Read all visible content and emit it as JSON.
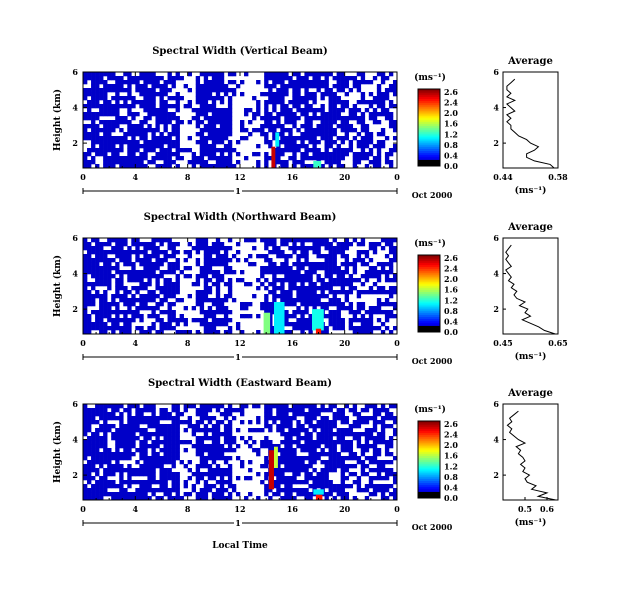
{
  "figure": {
    "date_label": "Oct 2000",
    "day_marker": "1",
    "xlabel": "Local Time",
    "units_label": "(ms⁻¹)"
  },
  "chart_data": [
    {
      "type": "heatmap",
      "title": "Spectral Width (Vertical Beam)",
      "xlabel": "Local Time",
      "ylabel": "Height (km)",
      "xlim": [
        0,
        24
      ],
      "ylim": [
        0.6,
        6
      ],
      "x_ticks": [
        "0",
        "4",
        "8",
        "12",
        "16",
        "20",
        "0"
      ],
      "y_ticks": [
        "6",
        "4",
        "2"
      ],
      "colorbar": {
        "label": "(ms⁻¹)",
        "ticks": [
          "2.6",
          "2.4",
          "2.0",
          "1.6",
          "1.2",
          "0.8",
          "0.4",
          "0.0"
        ],
        "range": [
          0,
          2.8
        ]
      },
      "background_level": 0.2,
      "highlights": [
        {
          "x_start": 14.4,
          "x_end": 14.7,
          "y_start": 0.6,
          "y_end": 1.8,
          "value": 2.6
        },
        {
          "x_start": 14.7,
          "x_end": 15.0,
          "y_start": 1.8,
          "y_end": 2.6,
          "value": 1.0
        },
        {
          "x_start": 17.6,
          "x_end": 18.2,
          "y_start": 0.6,
          "y_end": 1.0,
          "value": 1.2
        }
      ],
      "profile": {
        "title": "Average",
        "xlabel": "(ms⁻¹)",
        "xlim": [
          0.44,
          0.58
        ],
        "x_ticks": [
          "0.44",
          "0.58"
        ],
        "ylim": [
          0.6,
          6
        ],
        "y_ticks": [
          "6",
          "4",
          "2"
        ],
        "heights": [
          0.6,
          0.8,
          1.0,
          1.2,
          1.4,
          1.6,
          1.8,
          2.0,
          2.2,
          2.4,
          2.6,
          2.8,
          3.0,
          3.2,
          3.4,
          3.6,
          3.8,
          4.0,
          4.2,
          4.4,
          4.6,
          4.8,
          5.0,
          5.2,
          5.4,
          5.6
        ],
        "values": [
          0.57,
          0.56,
          0.52,
          0.5,
          0.5,
          0.52,
          0.53,
          0.51,
          0.5,
          0.48,
          0.47,
          0.46,
          0.46,
          0.45,
          0.46,
          0.45,
          0.47,
          0.46,
          0.45,
          0.47,
          0.45,
          0.46,
          0.45,
          0.45,
          0.46,
          0.47
        ]
      }
    },
    {
      "type": "heatmap",
      "title": "Spectral Width (Northward Beam)",
      "xlabel": "Local Time",
      "ylabel": "Height (km)",
      "xlim": [
        0,
        24
      ],
      "ylim": [
        0.6,
        6
      ],
      "x_ticks": [
        "0",
        "4",
        "8",
        "12",
        "16",
        "20",
        "0"
      ],
      "y_ticks": [
        "6",
        "4",
        "2"
      ],
      "colorbar": {
        "label": "(ms⁻¹)",
        "ticks": [
          "2.6",
          "2.4",
          "2.0",
          "1.6",
          "1.2",
          "0.8",
          "0.4",
          "0.0"
        ],
        "range": [
          0,
          2.8
        ]
      },
      "background_level": 0.2,
      "highlights": [
        {
          "x_start": 13.8,
          "x_end": 14.3,
          "y_start": 0.6,
          "y_end": 1.8,
          "value": 1.4
        },
        {
          "x_start": 14.6,
          "x_end": 15.4,
          "y_start": 0.6,
          "y_end": 2.4,
          "value": 1.0
        },
        {
          "x_start": 17.5,
          "x_end": 18.4,
          "y_start": 0.8,
          "y_end": 2.0,
          "value": 1.1
        },
        {
          "x_start": 17.8,
          "x_end": 18.2,
          "y_start": 0.6,
          "y_end": 0.9,
          "value": 2.4
        }
      ],
      "profile": {
        "title": "Average",
        "xlabel": "(ms⁻¹)",
        "xlim": [
          0.45,
          0.65
        ],
        "x_ticks": [
          "0.45",
          "0.65"
        ],
        "ylim": [
          0.6,
          6
        ],
        "y_ticks": [
          "6",
          "4",
          "2"
        ],
        "heights": [
          0.6,
          0.8,
          1.0,
          1.2,
          1.4,
          1.6,
          1.8,
          2.0,
          2.2,
          2.4,
          2.6,
          2.8,
          3.0,
          3.2,
          3.4,
          3.6,
          3.8,
          4.0,
          4.2,
          4.4,
          4.6,
          4.8,
          5.0,
          5.2,
          5.4,
          5.6
        ],
        "values": [
          0.64,
          0.6,
          0.58,
          0.55,
          0.52,
          0.55,
          0.53,
          0.54,
          0.51,
          0.53,
          0.5,
          0.49,
          0.5,
          0.48,
          0.49,
          0.47,
          0.48,
          0.47,
          0.46,
          0.48,
          0.47,
          0.46,
          0.47,
          0.46,
          0.47,
          0.48
        ]
      }
    },
    {
      "type": "heatmap",
      "title": "Spectral Width (Eastward Beam)",
      "xlabel": "Local Time",
      "ylabel": "Height (km)",
      "xlim": [
        0,
        24
      ],
      "ylim": [
        0.6,
        6
      ],
      "x_ticks": [
        "0",
        "4",
        "8",
        "12",
        "16",
        "20",
        "0"
      ],
      "y_ticks": [
        "6",
        "4",
        "2"
      ],
      "colorbar": {
        "label": "(ms⁻¹)",
        "ticks": [
          "2.6",
          "2.4",
          "2.0",
          "1.6",
          "1.2",
          "0.8",
          "0.4",
          "0.0"
        ],
        "range": [
          0,
          2.8
        ]
      },
      "background_level": 0.2,
      "highlights": [
        {
          "x_start": 14.2,
          "x_end": 14.6,
          "y_start": 1.2,
          "y_end": 3.4,
          "value": 2.6
        },
        {
          "x_start": 14.6,
          "x_end": 14.9,
          "y_start": 2.4,
          "y_end": 3.6,
          "value": 1.6
        },
        {
          "x_start": 17.8,
          "x_end": 18.3,
          "y_start": 0.6,
          "y_end": 0.9,
          "value": 2.4
        },
        {
          "x_start": 17.6,
          "x_end": 18.4,
          "y_start": 0.9,
          "y_end": 1.2,
          "value": 1.0
        }
      ],
      "profile": {
        "title": "Average",
        "xlabel": "(ms⁻¹)",
        "xlim": [
          0.4,
          0.65
        ],
        "x_ticks": [
          "0.5",
          "0.6"
        ],
        "ylim": [
          0.6,
          6
        ],
        "y_ticks": [
          "6",
          "4",
          "2"
        ],
        "heights": [
          0.6,
          0.8,
          1.0,
          1.2,
          1.4,
          1.6,
          1.8,
          2.0,
          2.2,
          2.4,
          2.6,
          2.8,
          3.0,
          3.2,
          3.4,
          3.6,
          3.8,
          4.0,
          4.2,
          4.4,
          4.6,
          4.8,
          5.0,
          5.2,
          5.4,
          5.6
        ],
        "values": [
          0.64,
          0.56,
          0.6,
          0.53,
          0.55,
          0.51,
          0.5,
          0.52,
          0.49,
          0.5,
          0.48,
          0.5,
          0.49,
          0.47,
          0.48,
          0.46,
          0.5,
          0.47,
          0.45,
          0.43,
          0.44,
          0.42,
          0.44,
          0.43,
          0.45,
          0.47
        ]
      }
    }
  ]
}
